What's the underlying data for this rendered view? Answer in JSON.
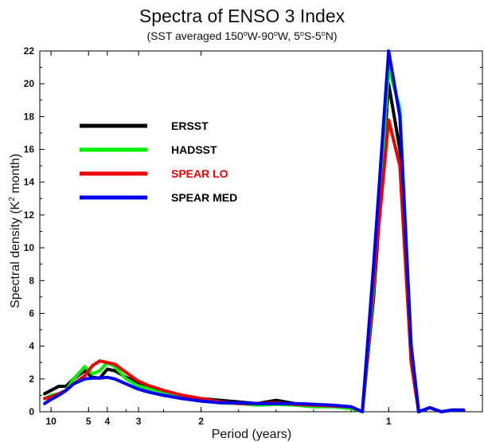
{
  "chart_data": {
    "type": "line",
    "title": "Spectra of ENSO 3 Index",
    "subtitle": {
      "prefix": "(SST averaged 150",
      "sup1": "o",
      "mid1": "W-90",
      "sup2": "o",
      "mid2": "W, 5",
      "sup3": "o",
      "mid3": "S-5",
      "sup4": "o",
      "suffix": "N)"
    },
    "xlabel": "Period (years)",
    "ylabel": {
      "prefix": "Spectral density (K",
      "sup": "2",
      "suffix": " month)"
    },
    "x_scale": "frequency (period axis reversed; labels show period in years)",
    "xlim_frequency_cycles_per_year": [
      0.07,
      1.25
    ],
    "ylim": [
      0,
      22
    ],
    "y_ticks": [
      0,
      2,
      4,
      6,
      8,
      10,
      12,
      14,
      16,
      18,
      20,
      22
    ],
    "x_tick_labels": [
      {
        "label": "10",
        "period": 10
      },
      {
        "label": "5",
        "period": 5
      },
      {
        "label": "4",
        "period": 4
      },
      {
        "label": "3",
        "period": 3
      },
      {
        "label": "2",
        "period": 2
      },
      {
        "label": "1",
        "period": 1
      }
    ],
    "legend_position": "upper-left",
    "series": [
      {
        "name": "ERSST",
        "color": "#000000",
        "points": [
          [
            0.083,
            1.1
          ],
          [
            0.1,
            1.3
          ],
          [
            0.12,
            1.55
          ],
          [
            0.14,
            1.55
          ],
          [
            0.16,
            2.0
          ],
          [
            0.19,
            2.5
          ],
          [
            0.21,
            2.1
          ],
          [
            0.23,
            2.05
          ],
          [
            0.25,
            2.6
          ],
          [
            0.27,
            2.5
          ],
          [
            0.3,
            2.1
          ],
          [
            0.33,
            1.8
          ],
          [
            0.36,
            1.5
          ],
          [
            0.4,
            1.2
          ],
          [
            0.45,
            1.0
          ],
          [
            0.5,
            0.8
          ],
          [
            0.55,
            0.7
          ],
          [
            0.6,
            0.6
          ],
          [
            0.65,
            0.5
          ],
          [
            0.7,
            0.7
          ],
          [
            0.75,
            0.5
          ],
          [
            0.8,
            0.45
          ],
          [
            0.85,
            0.35
          ],
          [
            0.9,
            0.25
          ],
          [
            0.93,
            0.0
          ],
          [
            0.96,
            7.0
          ],
          [
            1.0,
            20.0
          ],
          [
            1.03,
            16.0
          ],
          [
            1.06,
            4.0
          ],
          [
            1.08,
            0.0
          ],
          [
            1.11,
            0.25
          ],
          [
            1.14,
            0.0
          ],
          [
            1.17,
            0.1
          ],
          [
            1.2,
            0.1
          ]
        ]
      },
      {
        "name": "HADSST",
        "color": "#00ee00",
        "points": [
          [
            0.083,
            0.8
          ],
          [
            0.1,
            1.0
          ],
          [
            0.12,
            1.1
          ],
          [
            0.14,
            1.3
          ],
          [
            0.16,
            2.0
          ],
          [
            0.19,
            2.75
          ],
          [
            0.21,
            2.3
          ],
          [
            0.23,
            2.5
          ],
          [
            0.25,
            3.0
          ],
          [
            0.27,
            2.75
          ],
          [
            0.3,
            2.0
          ],
          [
            0.33,
            1.6
          ],
          [
            0.36,
            1.4
          ],
          [
            0.4,
            1.2
          ],
          [
            0.45,
            0.95
          ],
          [
            0.5,
            0.75
          ],
          [
            0.55,
            0.55
          ],
          [
            0.6,
            0.5
          ],
          [
            0.65,
            0.4
          ],
          [
            0.7,
            0.45
          ],
          [
            0.75,
            0.4
          ],
          [
            0.8,
            0.3
          ],
          [
            0.85,
            0.3
          ],
          [
            0.9,
            0.2
          ],
          [
            0.93,
            0.0
          ],
          [
            0.96,
            7.5
          ],
          [
            1.0,
            21.0
          ],
          [
            1.03,
            18.5
          ],
          [
            1.06,
            4.0
          ],
          [
            1.08,
            0.0
          ],
          [
            1.11,
            0.25
          ],
          [
            1.14,
            0.0
          ],
          [
            1.17,
            0.1
          ],
          [
            1.2,
            0.1
          ]
        ]
      },
      {
        "name": "SPEAR LO",
        "color": "#ee0000",
        "points": [
          [
            0.083,
            0.8
          ],
          [
            0.1,
            0.9
          ],
          [
            0.12,
            1.1
          ],
          [
            0.14,
            1.3
          ],
          [
            0.16,
            1.7
          ],
          [
            0.19,
            2.2
          ],
          [
            0.21,
            2.8
          ],
          [
            0.23,
            3.1
          ],
          [
            0.25,
            3.0
          ],
          [
            0.27,
            2.9
          ],
          [
            0.3,
            2.4
          ],
          [
            0.33,
            1.9
          ],
          [
            0.36,
            1.6
          ],
          [
            0.4,
            1.3
          ],
          [
            0.45,
            1.0
          ],
          [
            0.5,
            0.8
          ],
          [
            0.55,
            0.6
          ],
          [
            0.6,
            0.5
          ],
          [
            0.65,
            0.5
          ],
          [
            0.7,
            0.55
          ],
          [
            0.75,
            0.45
          ],
          [
            0.8,
            0.4
          ],
          [
            0.85,
            0.35
          ],
          [
            0.9,
            0.3
          ],
          [
            0.93,
            0.0
          ],
          [
            0.96,
            8.0
          ],
          [
            1.0,
            17.8
          ],
          [
            1.03,
            15.0
          ],
          [
            1.06,
            3.0
          ],
          [
            1.08,
            0.0
          ],
          [
            1.11,
            0.25
          ],
          [
            1.14,
            0.0
          ],
          [
            1.17,
            0.1
          ],
          [
            1.2,
            0.1
          ]
        ]
      },
      {
        "name": "SPEAR MED",
        "color": "#0000ee",
        "points": [
          [
            0.083,
            0.5
          ],
          [
            0.1,
            0.75
          ],
          [
            0.12,
            1.0
          ],
          [
            0.14,
            1.3
          ],
          [
            0.16,
            1.7
          ],
          [
            0.19,
            2.0
          ],
          [
            0.21,
            2.05
          ],
          [
            0.23,
            2.05
          ],
          [
            0.25,
            2.1
          ],
          [
            0.27,
            2.0
          ],
          [
            0.3,
            1.7
          ],
          [
            0.33,
            1.4
          ],
          [
            0.36,
            1.2
          ],
          [
            0.4,
            1.0
          ],
          [
            0.45,
            0.8
          ],
          [
            0.5,
            0.65
          ],
          [
            0.55,
            0.55
          ],
          [
            0.6,
            0.55
          ],
          [
            0.65,
            0.5
          ],
          [
            0.7,
            0.5
          ],
          [
            0.75,
            0.5
          ],
          [
            0.8,
            0.45
          ],
          [
            0.85,
            0.4
          ],
          [
            0.9,
            0.3
          ],
          [
            0.93,
            0.0
          ],
          [
            0.96,
            9.0
          ],
          [
            1.0,
            22.0
          ],
          [
            1.03,
            18.0
          ],
          [
            1.06,
            4.0
          ],
          [
            1.08,
            0.0
          ],
          [
            1.11,
            0.25
          ],
          [
            1.14,
            0.0
          ],
          [
            1.17,
            0.1
          ],
          [
            1.2,
            0.1
          ]
        ]
      }
    ]
  }
}
